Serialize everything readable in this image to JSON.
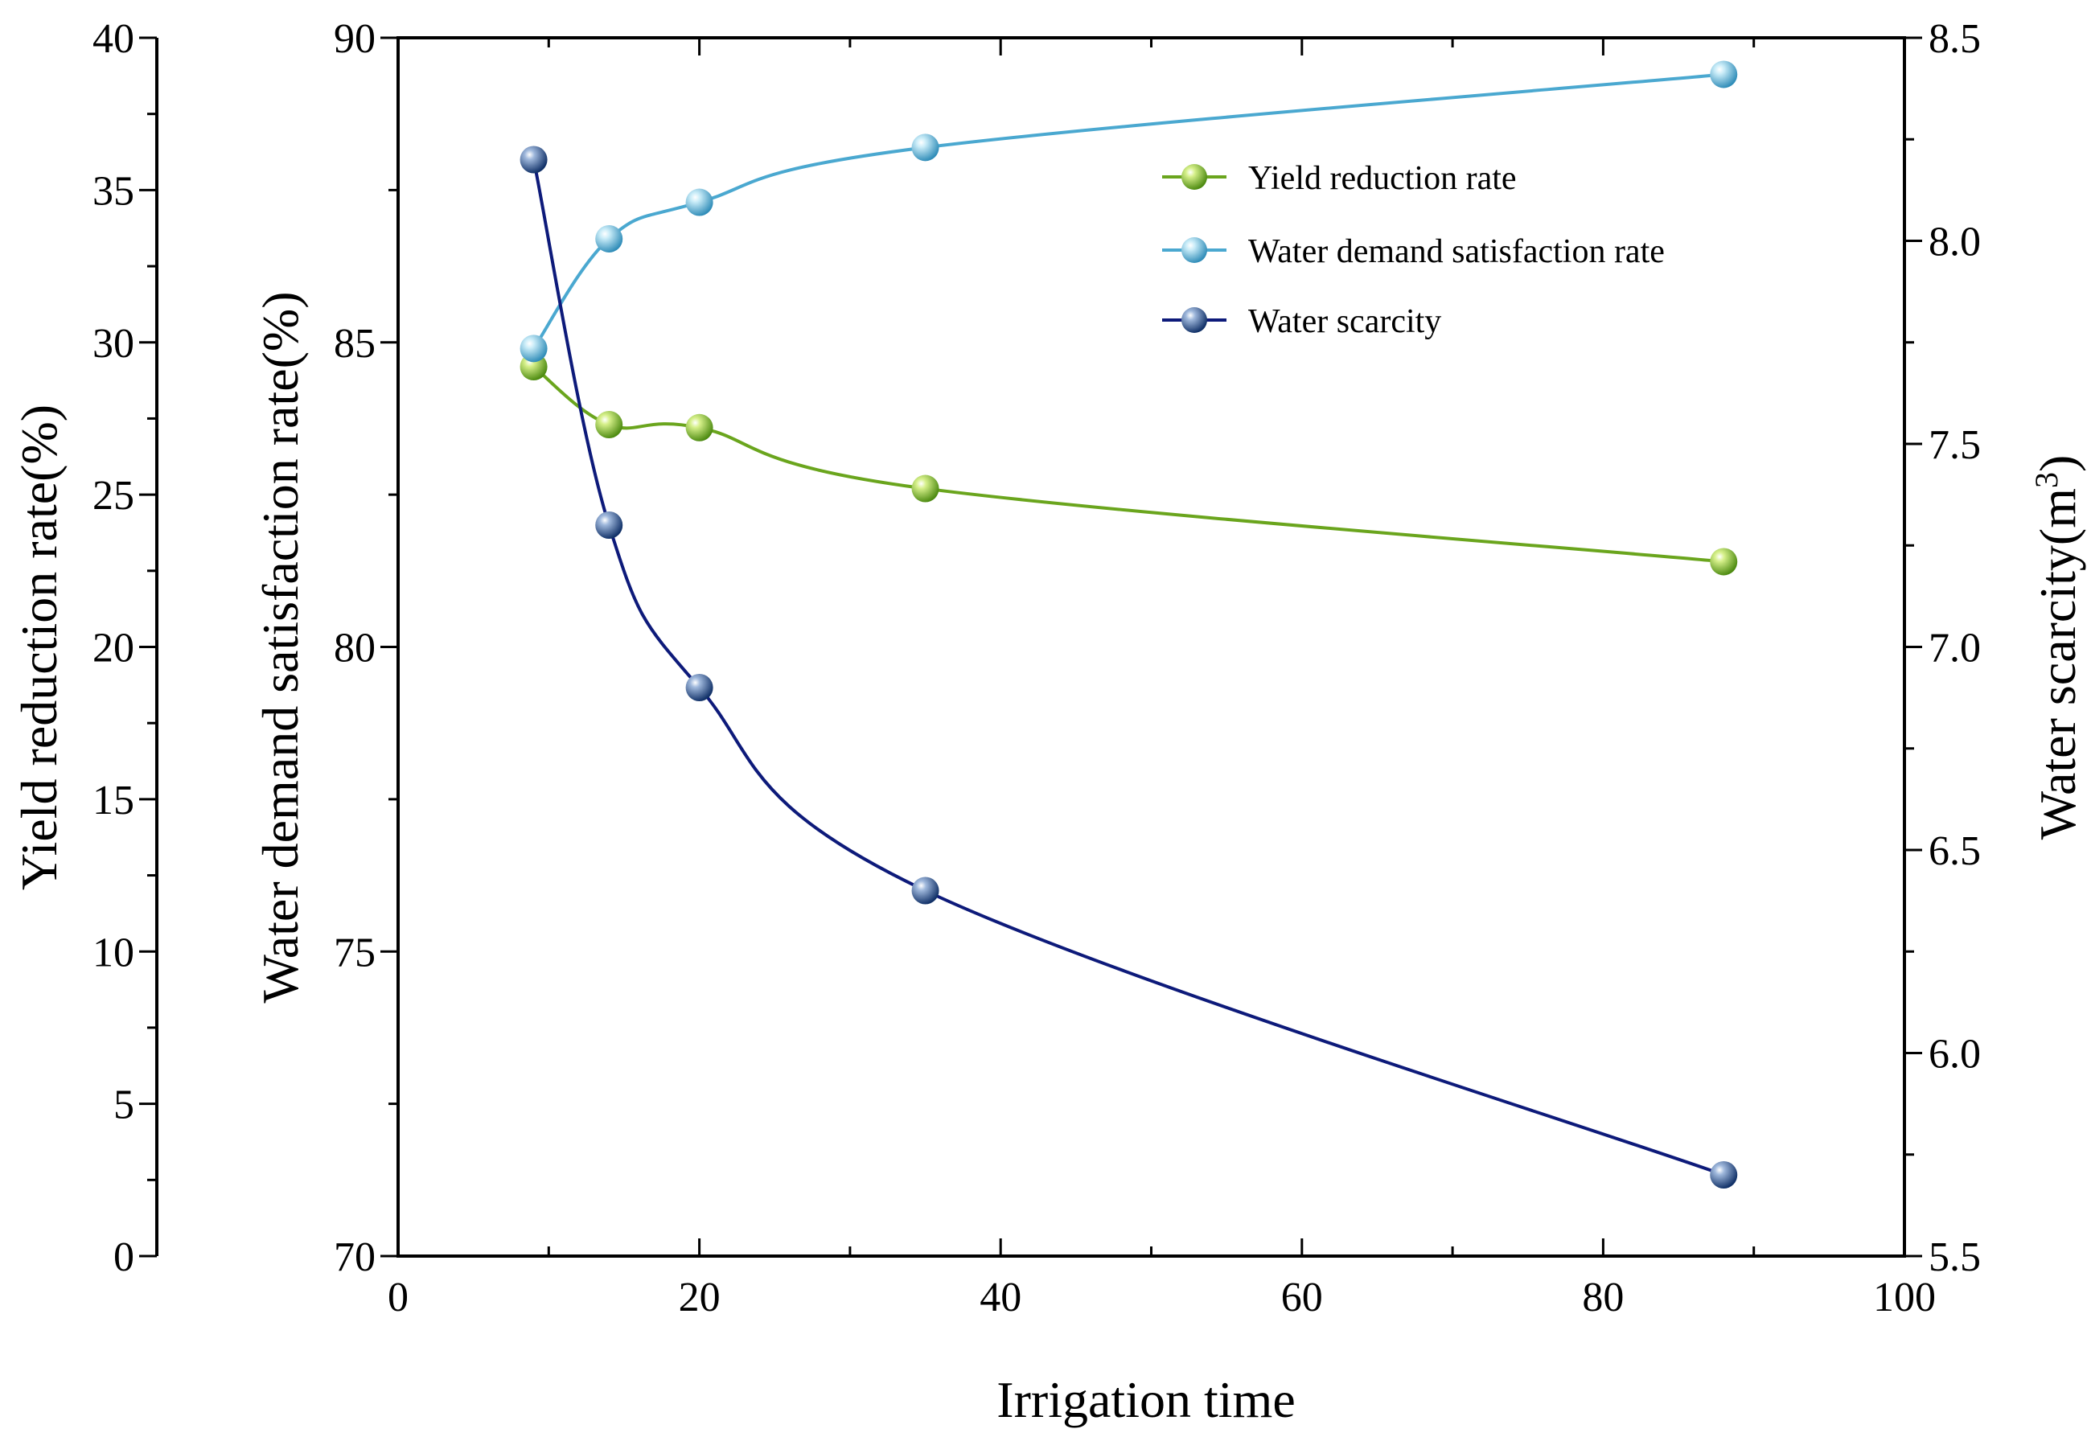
{
  "chart_data": {
    "type": "line",
    "title": "",
    "xlabel": "Irrigation  time",
    "xlim": [
      0,
      100
    ],
    "x_ticks": [
      "0",
      "20",
      "40",
      "60",
      "80",
      "100"
    ],
    "axes": {
      "yield": {
        "label": "Yield reduction rate(%)",
        "lim": [
          0,
          40
        ],
        "ticks": [
          "0",
          "5",
          "10",
          "15",
          "20",
          "25",
          "30",
          "35",
          "40"
        ]
      },
      "demand": {
        "label": "Water demand satisfaction rate(%)",
        "lim": [
          70,
          90
        ],
        "ticks": [
          "70",
          "75",
          "80",
          "85",
          "90"
        ]
      },
      "scarcity": {
        "label_main": "Water scarcity(m",
        "label_sup": "3",
        "label_end": ")",
        "lim": [
          5.5,
          8.5
        ],
        "ticks": [
          "5.5",
          "6.0",
          "6.5",
          "7.0",
          "7.5",
          "8.0",
          "8.5"
        ]
      }
    },
    "x": [
      9,
      14,
      20,
      35,
      88
    ],
    "series": [
      {
        "name": "Yield reduction rate",
        "axis": "yield",
        "color": "#6aa51d",
        "highlight": "#d6f08a",
        "values": [
          29.2,
          27.3,
          27.2,
          25.2,
          22.8
        ]
      },
      {
        "name": "Water demand satisfaction rate",
        "axis": "demand",
        "color": "#4aa8d0",
        "highlight": "#c9ecf8",
        "values": [
          84.9,
          86.7,
          87.3,
          88.2,
          89.4
        ]
      },
      {
        "name": "Water scarcity",
        "axis": "scarcity",
        "color": "#0d1a7a",
        "marker": "#1c4c8e",
        "highlight": "#9fb8dc",
        "values": [
          8.2,
          7.3,
          6.9,
          6.4,
          5.7
        ]
      }
    ],
    "legend_position": "top-right"
  }
}
